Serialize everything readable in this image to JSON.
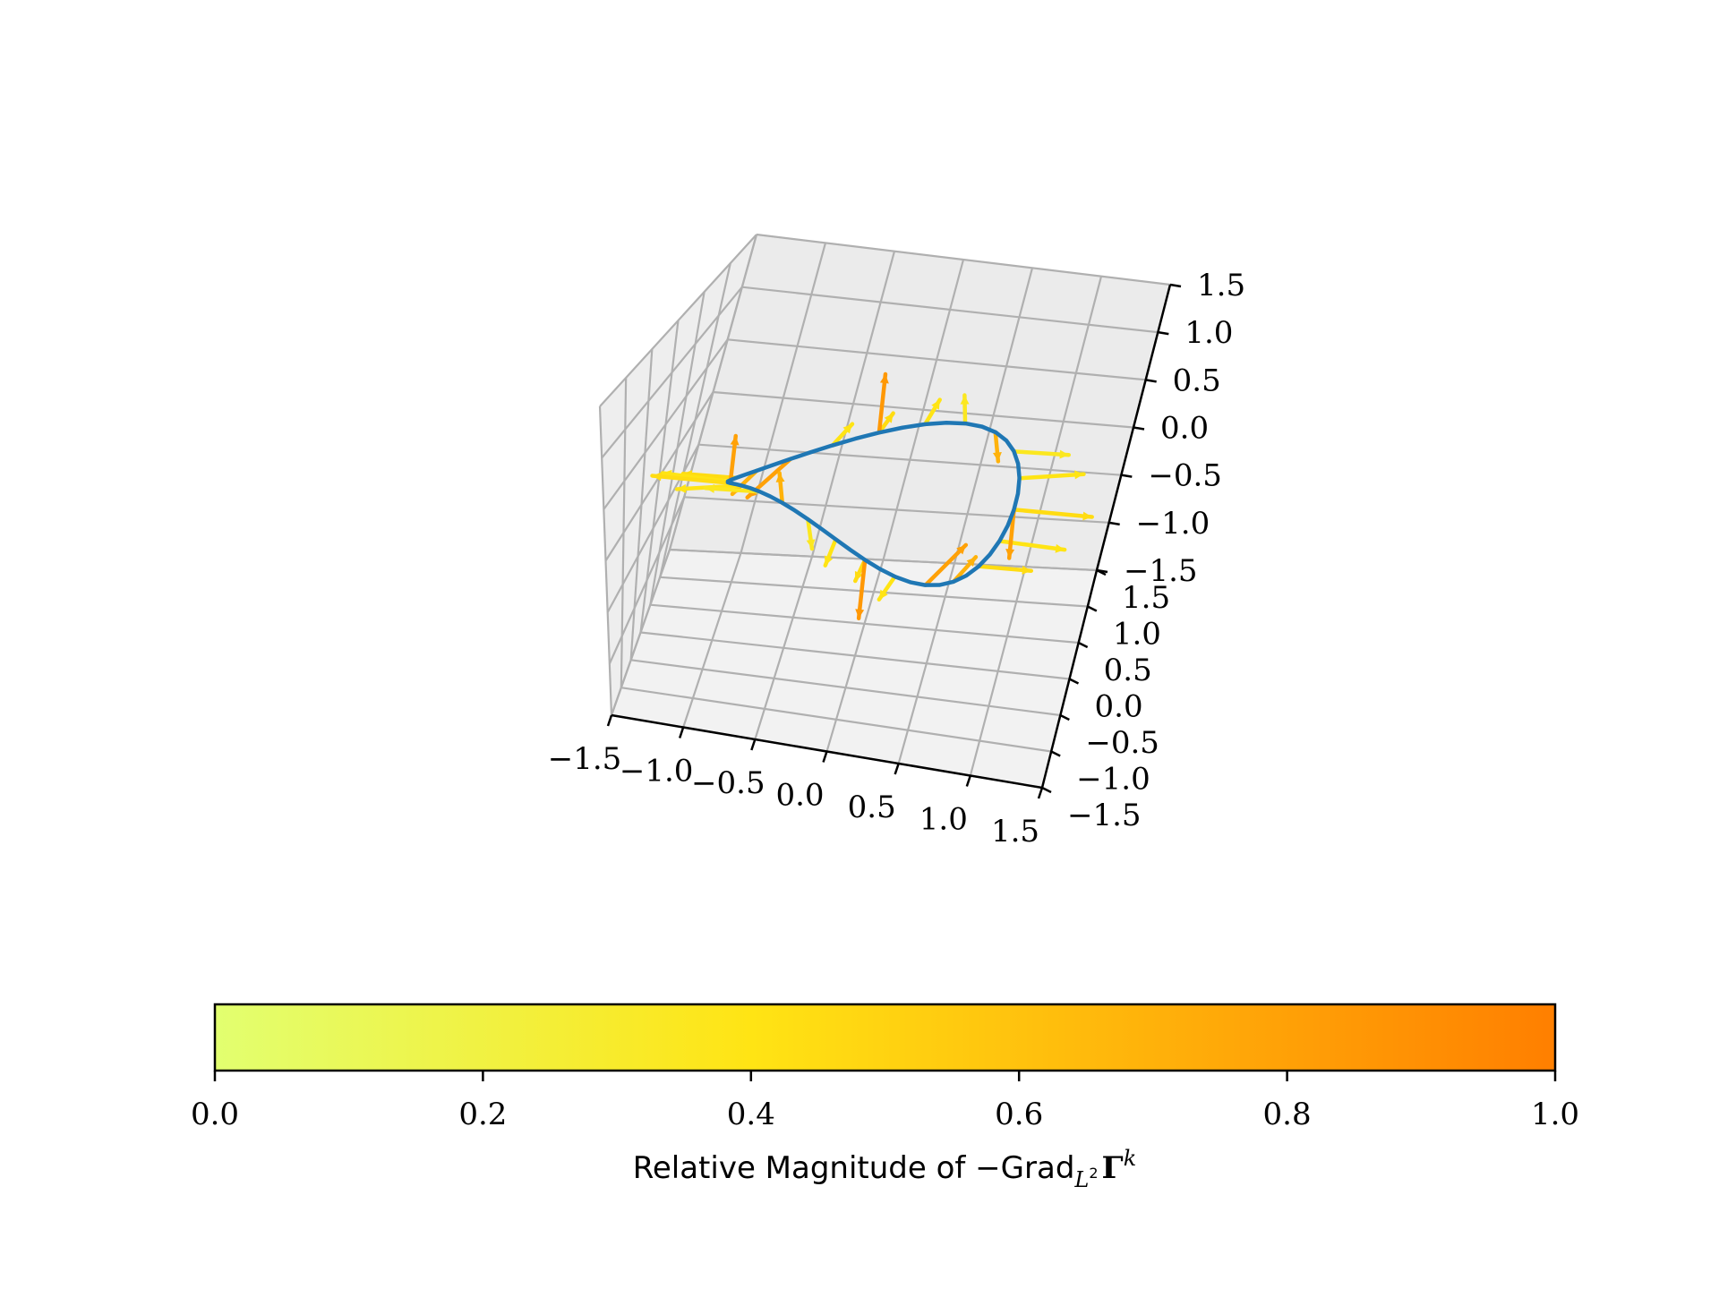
{
  "chart_data": {
    "type": "line",
    "projection": "3d",
    "curve_color": "#1f77b4",
    "axes": {
      "x": {
        "range": [
          -1.5,
          1.5
        ],
        "ticks": [
          -1.5,
          -1.0,
          -0.5,
          0.0,
          0.5,
          1.0,
          1.5
        ],
        "tick_labels": [
          "−1.5",
          "−1.0",
          "−0.5",
          "0.0",
          "0.5",
          "1.0",
          "1.5"
        ]
      },
      "y": {
        "range": [
          -1.5,
          1.5
        ],
        "ticks": [
          -1.5,
          -1.0,
          -0.5,
          0.0,
          0.5,
          1.0,
          1.5
        ],
        "tick_labels": [
          "−1.5",
          "−1.0",
          "−0.5",
          "0.0",
          "0.5",
          "1.0",
          "1.5"
        ]
      },
      "z": {
        "range": [
          -1.5,
          1.5
        ],
        "ticks": [
          -1.5,
          -1.0,
          -0.5,
          0.0,
          0.5,
          1.0,
          1.5
        ],
        "tick_labels": [
          "−1.5",
          "−1.0",
          "−0.5",
          "0.0",
          "0.5",
          "1.0",
          "1.5"
        ]
      }
    },
    "grid": true,
    "series": [
      {
        "kind": "curve",
        "description": "figure-eight (lemniscate) curve",
        "t_samples": 48,
        "equation": {
          "x": "cos(t)",
          "y": "sin(2t)/2",
          "z": "0.6 sin(t)"
        }
      },
      {
        "kind": "quiver",
        "colored_by": "relative magnitude",
        "vectors": [
          {
            "t": 0.0,
            "d": [
              0.55,
              0.0,
              0.0
            ],
            "m": 0.45
          },
          {
            "t": 0.26,
            "d": [
              0.4,
              0.25,
              -0.05
            ],
            "m": 0.4
          },
          {
            "t": 0.52,
            "d": [
              0.35,
              0.2,
              -0.1
            ],
            "m": 0.35
          },
          {
            "t": 0.79,
            "d": [
              0.0,
              0.3,
              -0.45
            ],
            "m": 0.7
          },
          {
            "t": 1.05,
            "d": [
              -0.1,
              0.3,
              0.1
            ],
            "m": 0.35
          },
          {
            "t": 1.31,
            "d": [
              0.0,
              0.35,
              0.05
            ],
            "m": 0.4
          },
          {
            "t": 1.57,
            "d": [
              0.0,
              0.35,
              0.0
            ],
            "m": 0.45
          },
          {
            "t": 1.83,
            "d": [
              0.05,
              0.3,
              0.05
            ],
            "m": 0.4
          },
          {
            "t": 2.09,
            "d": [
              -0.2,
              -0.35,
              -0.2
            ],
            "m": 0.8
          },
          {
            "t": 2.36,
            "d": [
              -0.1,
              -0.25,
              -0.1
            ],
            "m": 0.7
          },
          {
            "t": 2.62,
            "d": [
              -0.35,
              -0.1,
              0.05
            ],
            "m": 0.45
          },
          {
            "t": 2.88,
            "d": [
              -0.45,
              -0.05,
              0.05
            ],
            "m": 0.4
          },
          {
            "t": 3.14,
            "d": [
              -0.55,
              0.0,
              0.0
            ],
            "m": 0.45
          },
          {
            "t": 3.4,
            "d": [
              -0.4,
              -0.25,
              0.05
            ],
            "m": 0.4
          },
          {
            "t": 3.67,
            "d": [
              -0.35,
              -0.2,
              0.1
            ],
            "m": 0.35
          },
          {
            "t": 3.93,
            "d": [
              0.0,
              -0.3,
              0.45
            ],
            "m": 0.7
          },
          {
            "t": 4.19,
            "d": [
              0.1,
              -0.3,
              -0.1
            ],
            "m": 0.35
          },
          {
            "t": 4.45,
            "d": [
              0.0,
              -0.35,
              -0.05
            ],
            "m": 0.4
          },
          {
            "t": 4.71,
            "d": [
              0.0,
              -0.35,
              0.0
            ],
            "m": 0.45
          },
          {
            "t": 4.97,
            "d": [
              -0.05,
              -0.3,
              -0.05
            ],
            "m": 0.4
          },
          {
            "t": 5.24,
            "d": [
              0.2,
              0.35,
              0.2
            ],
            "m": 0.8
          },
          {
            "t": 5.5,
            "d": [
              0.1,
              0.25,
              0.1
            ],
            "m": 0.7
          },
          {
            "t": 5.76,
            "d": [
              0.35,
              0.1,
              -0.05
            ],
            "m": 0.45
          },
          {
            "t": 6.02,
            "d": [
              0.45,
              0.05,
              -0.05
            ],
            "m": 0.4
          },
          {
            "t": 1.57,
            "d": [
              0.0,
              0.0,
              0.55
            ],
            "m": 0.85
          },
          {
            "t": 4.71,
            "d": [
              0.0,
              0.0,
              -0.55
            ],
            "m": 0.85
          },
          {
            "t": 0.0,
            "d": [
              0.0,
              0.0,
              -0.45
            ],
            "m": 0.8
          },
          {
            "t": 3.14,
            "d": [
              0.0,
              0.0,
              0.45
            ],
            "m": 0.8
          }
        ]
      }
    ],
    "colorbar": {
      "orientation": "horizontal",
      "range": [
        0.0,
        1.0
      ],
      "ticks": [
        0.0,
        0.2,
        0.4,
        0.6,
        0.8,
        1.0
      ],
      "tick_labels": [
        "0.0",
        "0.2",
        "0.4",
        "0.6",
        "0.8",
        "1.0"
      ],
      "colors": [
        "#e2ff70",
        "#ffe414",
        "#ff7f00"
      ],
      "label": "Relative Magnitude of −Grad",
      "label_subscript": "L",
      "label_subscript_sup": "2",
      "label_bold": "Γ",
      "label_sup": "k"
    }
  }
}
